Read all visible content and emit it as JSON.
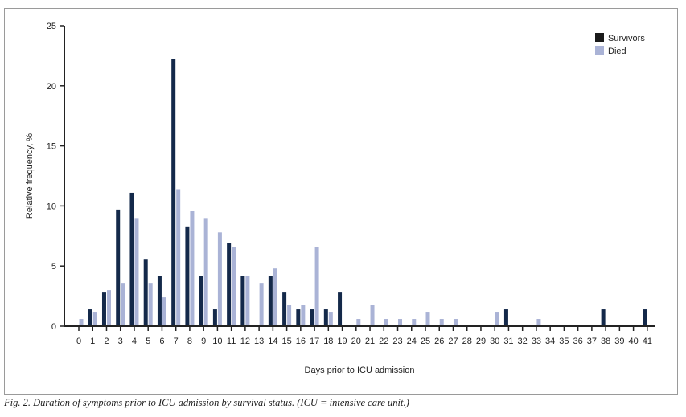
{
  "chart_data": {
    "type": "bar",
    "xlabel": "Days prior to ICU admission",
    "ylabel": "Relative frequency, %",
    "ylim": [
      0,
      25
    ],
    "yticks": [
      0,
      5,
      10,
      15,
      20,
      25
    ],
    "categories": [
      0,
      1,
      2,
      3,
      4,
      5,
      6,
      7,
      8,
      9,
      10,
      11,
      12,
      13,
      14,
      15,
      16,
      17,
      18,
      19,
      20,
      21,
      22,
      23,
      24,
      25,
      26,
      27,
      28,
      29,
      30,
      31,
      32,
      33,
      34,
      35,
      36,
      37,
      38,
      39,
      40,
      41
    ],
    "legend_position": "top-right",
    "grid": false,
    "series": [
      {
        "name": "Survivors",
        "color": "#14294a",
        "values": [
          0,
          1.4,
          2.8,
          9.7,
          11.1,
          5.6,
          4.2,
          22.2,
          8.3,
          4.2,
          1.4,
          6.9,
          4.2,
          0,
          4.2,
          2.8,
          1.4,
          1.4,
          1.4,
          2.8,
          0,
          0,
          0,
          0,
          0,
          0,
          0,
          0,
          0,
          0,
          0,
          1.4,
          0,
          0,
          0,
          0,
          0,
          0,
          1.4,
          0,
          0,
          1.4
        ]
      },
      {
        "name": "Died",
        "color": "#aab3d6",
        "values": [
          0.6,
          1.2,
          3.0,
          3.6,
          9.0,
          3.6,
          2.4,
          11.4,
          9.6,
          9.0,
          7.8,
          6.6,
          4.2,
          3.6,
          4.8,
          1.8,
          1.8,
          6.6,
          1.2,
          0,
          0.6,
          1.8,
          0.6,
          0.6,
          0.6,
          1.2,
          0.6,
          0.6,
          0,
          0,
          1.2,
          0,
          0,
          0.6,
          0,
          0,
          0,
          0,
          0,
          0,
          0,
          0
        ]
      }
    ]
  },
  "caption": "Fig. 2. Duration of symptoms prior to ICU admission by survival status. (ICU = intensive care unit.)"
}
